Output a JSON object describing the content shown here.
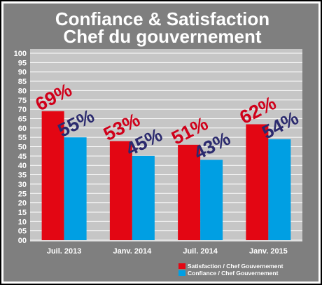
{
  "chart_data": {
    "type": "bar",
    "title_line1": "Confiance & Satisfaction",
    "title_line2": "Chef du gouvernement",
    "categories": [
      "Juil. 2013",
      "Janv. 2014",
      "Juil. 2014",
      "Janv. 2015"
    ],
    "series": [
      {
        "name": "Satisfaction / Chef Gouvernement",
        "color": "#e30613",
        "label_color": "#d0001a",
        "values": [
          69,
          53,
          51,
          62
        ],
        "labels": [
          "69%",
          "53%",
          "51%",
          "62%"
        ]
      },
      {
        "name": "Confiance / Chef Gouvernement",
        "color": "#009fe3",
        "label_color": "#2b2a6e",
        "values": [
          55,
          45,
          43,
          54
        ],
        "labels": [
          "55%",
          "45%",
          "43%",
          "54%"
        ]
      }
    ],
    "yticks": [
      "00",
      "05",
      "10",
      "15",
      "20",
      "25",
      "30",
      "35",
      "40",
      "45",
      "50",
      "55",
      "60",
      "65",
      "70",
      "75",
      "80",
      "85",
      "90",
      "95",
      "100"
    ],
    "ylim": [
      0,
      100
    ],
    "grid": true,
    "legend_position": "bottom-right",
    "colors": {
      "background": "#7f7f7f",
      "plot_area": "#c6c6c6",
      "grid": "#ffffff",
      "frame": "#000000"
    }
  }
}
